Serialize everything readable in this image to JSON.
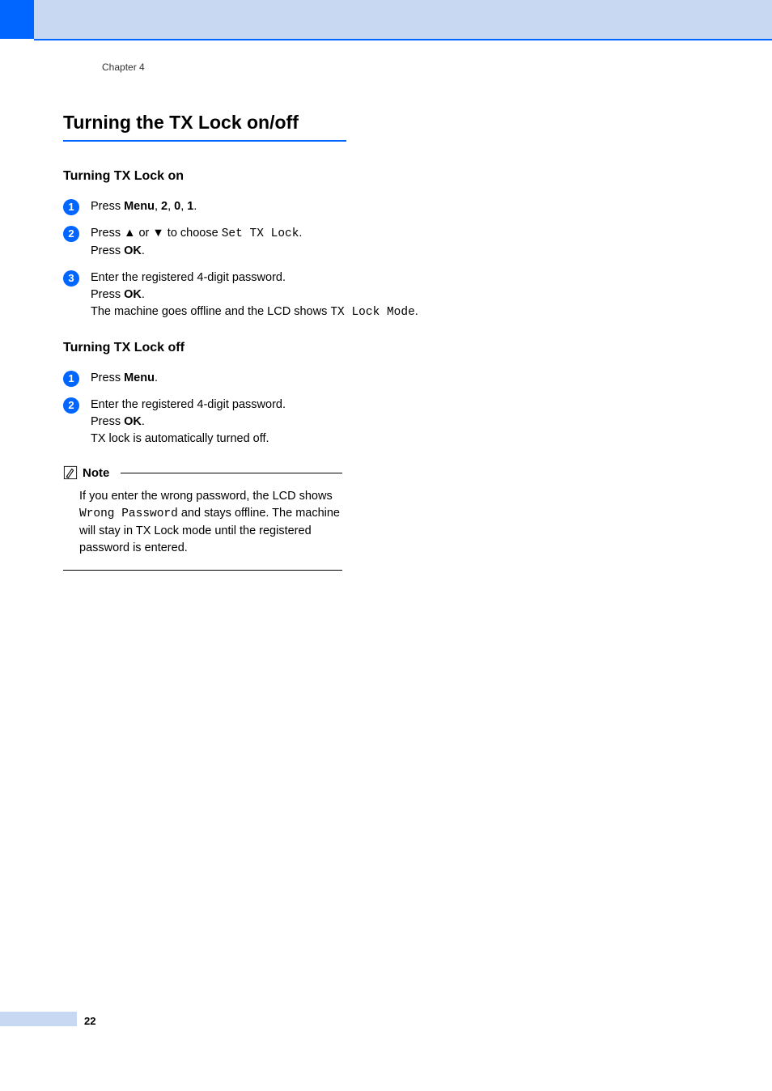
{
  "colors": {
    "accent_blue": "#0066ff",
    "header_bg": "#c9d8f2",
    "text": "#000000",
    "background": "#ffffff"
  },
  "typography": {
    "body_family": "Arial, Helvetica, sans-serif",
    "mono_family": "Courier New, monospace",
    "body_size_pt": 11,
    "h1_size_pt": 18,
    "h2_size_pt": 12
  },
  "chapter": "Chapter 4",
  "page_number": "22",
  "title": "Turning the TX Lock on/off",
  "sections": [
    {
      "heading": "Turning TX Lock on",
      "steps": [
        {
          "num": "1",
          "segments": [
            {
              "t": "Press "
            },
            {
              "t": "Menu",
              "bold": true
            },
            {
              "t": ", "
            },
            {
              "t": "2",
              "bold": true
            },
            {
              "t": ", "
            },
            {
              "t": "0",
              "bold": true
            },
            {
              "t": ", "
            },
            {
              "t": "1",
              "bold": true
            },
            {
              "t": "."
            }
          ]
        },
        {
          "num": "2",
          "segments": [
            {
              "t": "Press "
            },
            {
              "t": "▲",
              "arrow": true
            },
            {
              "t": " or "
            },
            {
              "t": "▼",
              "arrow": true
            },
            {
              "t": " to choose "
            },
            {
              "t": "Set TX Lock",
              "mono": true
            },
            {
              "t": "."
            },
            {
              "br": true
            },
            {
              "t": "Press "
            },
            {
              "t": "OK",
              "bold": true
            },
            {
              "t": "."
            }
          ]
        },
        {
          "num": "3",
          "segments": [
            {
              "t": "Enter the registered 4-digit password."
            },
            {
              "br": true
            },
            {
              "t": "Press "
            },
            {
              "t": "OK",
              "bold": true
            },
            {
              "t": "."
            },
            {
              "br": true
            },
            {
              "t": "The machine goes offline and the LCD shows "
            },
            {
              "t": "TX Lock Mode",
              "mono": true
            },
            {
              "t": "."
            }
          ]
        }
      ]
    },
    {
      "heading": "Turning TX Lock off",
      "steps": [
        {
          "num": "1",
          "segments": [
            {
              "t": "Press "
            },
            {
              "t": "Menu",
              "bold": true
            },
            {
              "t": "."
            }
          ]
        },
        {
          "num": "2",
          "segments": [
            {
              "t": "Enter the registered 4-digit password."
            },
            {
              "br": true
            },
            {
              "t": "Press "
            },
            {
              "t": "OK",
              "bold": true
            },
            {
              "t": "."
            },
            {
              "br": true
            },
            {
              "t": "TX lock is automatically turned off."
            }
          ]
        }
      ]
    }
  ],
  "note": {
    "label": "Note",
    "segments": [
      {
        "t": "If you enter the wrong password, the LCD shows "
      },
      {
        "t": "Wrong Password",
        "mono": true
      },
      {
        "t": " and stays offline. The machine will stay in TX Lock mode until the registered password is entered."
      }
    ]
  }
}
